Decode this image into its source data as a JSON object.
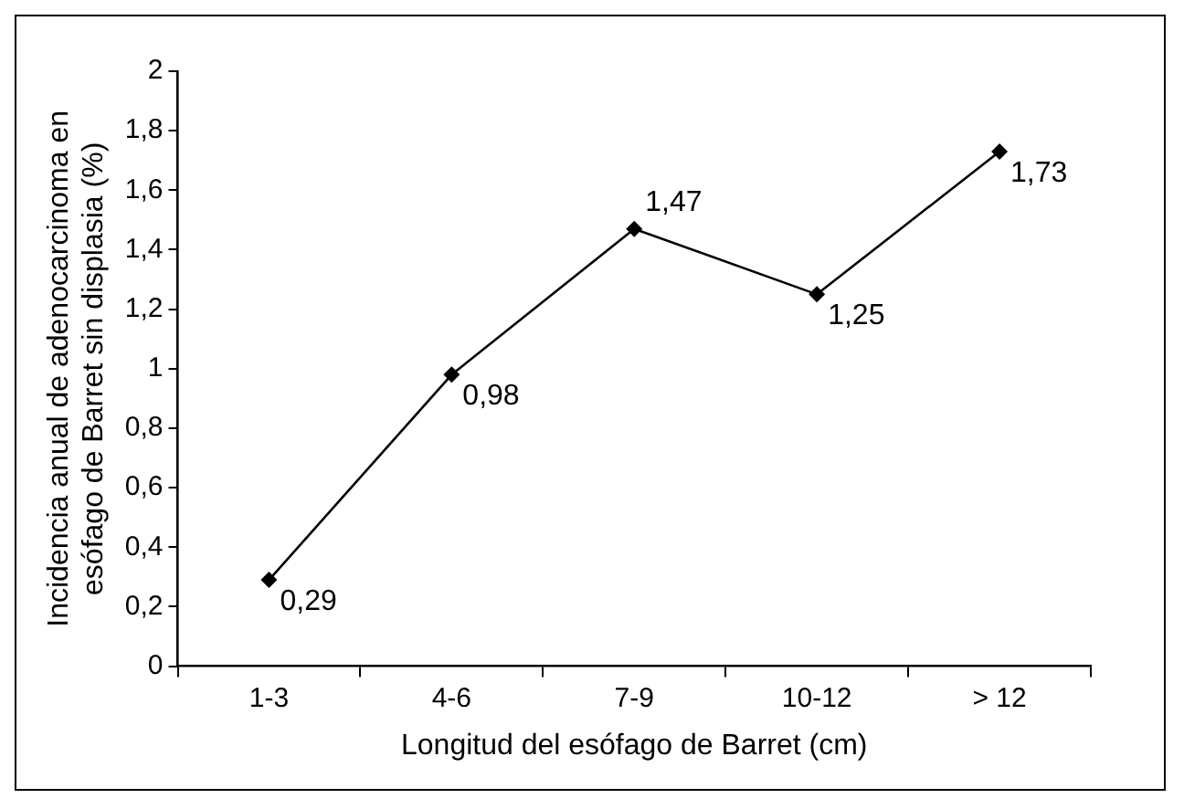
{
  "chart_data": {
    "type": "line",
    "xlabel": "Longitud del esófago de Barret (cm)",
    "ylabel": "Incidencia anual de adenocarcinoma en esófago de Barret sin displasia (%)",
    "categories": [
      "1-3",
      "4-6",
      "7-9",
      "10-12",
      "> 12"
    ],
    "values": [
      0.29,
      0.98,
      1.47,
      1.25,
      1.73
    ],
    "value_labels": [
      "0,29",
      "0,98",
      "1,47",
      "1,25",
      "1,73"
    ],
    "color": "#000000",
    "marker": "diamond",
    "line_style": "solid",
    "grid": false,
    "legend": false,
    "ylim": [
      0,
      2
    ],
    "yticks": [
      0,
      {
        "value": 0.2,
        "label": "0,2"
      },
      {
        "value": 0.4,
        "label": "0,4"
      },
      {
        "value": 0.6,
        "label": "0,6"
      },
      {
        "value": 0.8,
        "label": "0,8"
      },
      1,
      {
        "value": 1.2,
        "label": "1,2"
      },
      {
        "value": 1.4,
        "label": "1,4"
      },
      {
        "value": 1.6,
        "label": "1,6"
      },
      {
        "value": 1.8,
        "label": "1,8"
      },
      2
    ]
  }
}
